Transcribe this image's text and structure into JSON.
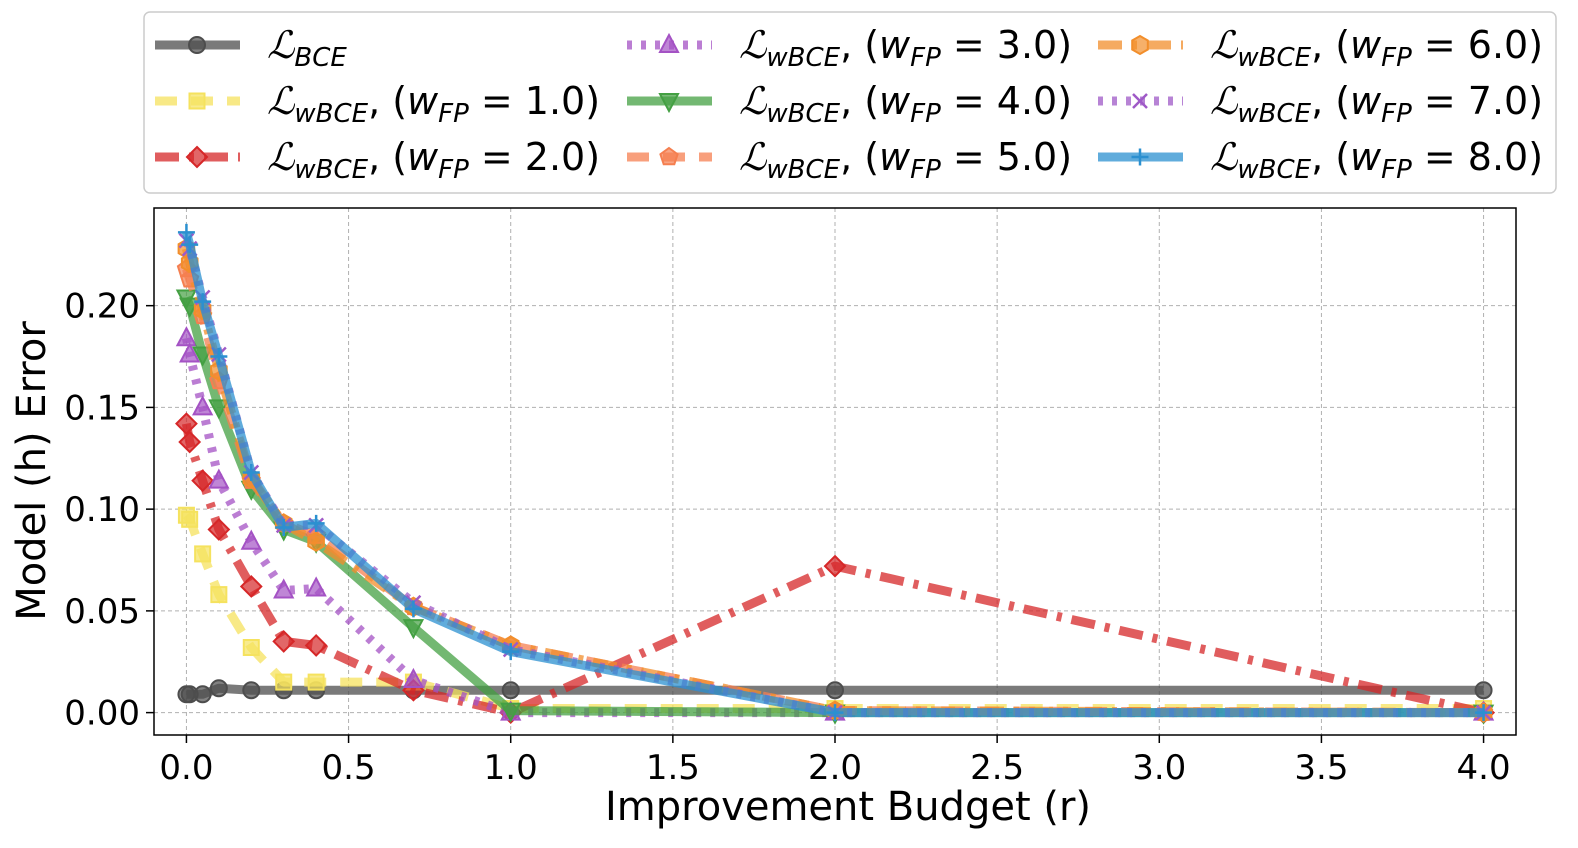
{
  "chart_data": {
    "type": "line",
    "xlabel": "Improvement Budget (r)",
    "ylabel": "Model (h) Error",
    "xlim": [
      -0.1,
      4.1
    ],
    "ylim": [
      -0.011,
      0.248
    ],
    "xticks": [
      "0.0",
      "0.5",
      "1.0",
      "1.5",
      "2.0",
      "2.5",
      "3.0",
      "3.5",
      "4.0"
    ],
    "yticks": [
      "0.00",
      "0.05",
      "0.10",
      "0.15",
      "0.20"
    ],
    "grid": true,
    "legend_position": "top",
    "x": [
      0.0,
      0.01,
      0.05,
      0.1,
      0.2,
      0.3,
      0.4,
      0.7,
      1.0,
      2.0,
      4.0
    ],
    "series": [
      {
        "name": "ℒBCE",
        "label_main": "ℒ",
        "label_sub": "BCE",
        "w_fp": "",
        "color": "#4d4d4d",
        "marker": "circle",
        "dash": "solid",
        "values": [
          0.009,
          0.009,
          0.009,
          0.012,
          0.011,
          0.011,
          0.011,
          0.011,
          0.011,
          0.011,
          0.011
        ]
      },
      {
        "name": "ℒwBCE, (wFP = 1.0)",
        "label_main": "ℒ",
        "label_sub": "wBCE",
        "w_fp": "1.0",
        "color": "#f5e25e",
        "marker": "square",
        "dash": "dashed",
        "values": [
          0.097,
          0.095,
          0.078,
          0.058,
          0.032,
          0.015,
          0.015,
          0.015,
          0.002,
          0.002,
          0.002
        ]
      },
      {
        "name": "ℒwBCE, (wFP = 2.0)",
        "label_main": "ℒ",
        "label_sub": "wBCE",
        "w_fp": "2.0",
        "color": "#d62728",
        "marker": "diamond",
        "dash": "dashdot",
        "values": [
          0.142,
          0.133,
          0.114,
          0.09,
          0.062,
          0.035,
          0.033,
          0.011,
          0.0,
          0.072,
          0.0
        ]
      },
      {
        "name": "ℒwBCE, (wFP = 3.0)",
        "label_main": "ℒ",
        "label_sub": "wBCE",
        "w_fp": "3.0",
        "color": "#a452c4",
        "marker": "triangle-up",
        "dash": "dotted",
        "values": [
          0.184,
          0.176,
          0.15,
          0.114,
          0.084,
          0.06,
          0.061,
          0.016,
          0.0,
          0.0,
          0.0
        ]
      },
      {
        "name": "ℒwBCE, (wFP = 4.0)",
        "label_main": "ℒ",
        "label_sub": "wBCE",
        "w_fp": "4.0",
        "color": "#44a043",
        "marker": "triangle-down",
        "dash": "solid",
        "values": [
          0.204,
          0.2,
          0.176,
          0.15,
          0.11,
          0.09,
          0.084,
          0.042,
          0.001,
          0.0,
          0.0
        ]
      },
      {
        "name": "ℒwBCE, (wFP = 5.0)",
        "label_main": "ℒ",
        "label_sub": "wBCE",
        "w_fp": "5.0",
        "color": "#f57f50",
        "marker": "pentagon",
        "dash": "dashed",
        "values": [
          0.218,
          0.213,
          0.195,
          0.163,
          0.114,
          0.093,
          0.087,
          0.052,
          0.033,
          0.001,
          0.0
        ]
      },
      {
        "name": "ℒwBCE, (wFP = 6.0)",
        "label_main": "ℒ",
        "label_sub": "wBCE",
        "w_fp": "6.0",
        "color": "#f28e2b",
        "marker": "hexagon",
        "dash": "dashdot",
        "values": [
          0.228,
          0.221,
          0.198,
          0.168,
          0.115,
          0.093,
          0.084,
          0.052,
          0.033,
          0.001,
          0.0
        ]
      },
      {
        "name": "ℒwBCE, (wFP = 7.0)",
        "label_main": "ℒ",
        "label_sub": "wBCE",
        "w_fp": "7.0",
        "color": "#9f5ac7",
        "marker": "x",
        "dash": "dotted",
        "values": [
          0.232,
          0.228,
          0.204,
          0.176,
          0.118,
          0.092,
          0.092,
          0.054,
          0.031,
          0.0,
          0.0
        ]
      },
      {
        "name": "ℒwBCE, (wFP = 8.0)",
        "label_main": "ℒ",
        "label_sub": "wBCE",
        "w_fp": "8.0",
        "color": "#2b90d0",
        "marker": "plus",
        "dash": "solid",
        "values": [
          0.236,
          0.23,
          0.202,
          0.175,
          0.118,
          0.091,
          0.093,
          0.051,
          0.03,
          0.0,
          0.0
        ]
      }
    ]
  }
}
